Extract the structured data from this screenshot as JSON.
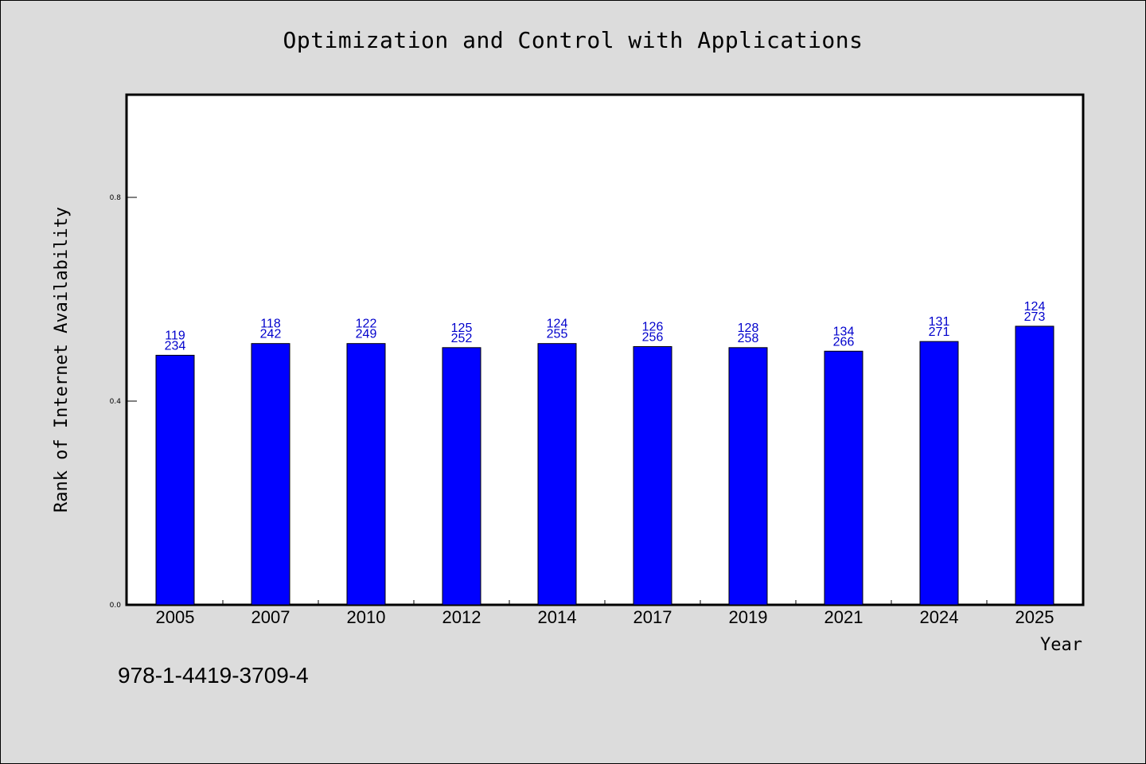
{
  "chart_data": {
    "type": "bar",
    "title": "Optimization and Control with Applications",
    "xlabel": "Year",
    "ylabel": "Rank of Internet Availability",
    "ylim": [
      0,
      1
    ],
    "yticks": [
      0.0,
      0.4,
      0.8
    ],
    "ytick_labels": [
      "0.0",
      "0.4",
      "0.8"
    ],
    "grid": false,
    "bar_color": "#0000ff",
    "label_color": "#0000cc",
    "categories": [
      "2005",
      "2007",
      "2010",
      "2012",
      "2014",
      "2017",
      "2019",
      "2021",
      "2024",
      "2025"
    ],
    "values": [
      0.49,
      0.513,
      0.513,
      0.505,
      0.513,
      0.507,
      0.505,
      0.498,
      0.517,
      0.547
    ],
    "data_labels": [
      [
        "119",
        "234"
      ],
      [
        "118",
        "242"
      ],
      [
        "122",
        "249"
      ],
      [
        "125",
        "252"
      ],
      [
        "124",
        "255"
      ],
      [
        "126",
        "256"
      ],
      [
        "128",
        "258"
      ],
      [
        "134",
        "266"
      ],
      [
        "131",
        "271"
      ],
      [
        "124",
        "273"
      ]
    ]
  },
  "footer": {
    "identifier": "978-1-4419-3709-4"
  }
}
